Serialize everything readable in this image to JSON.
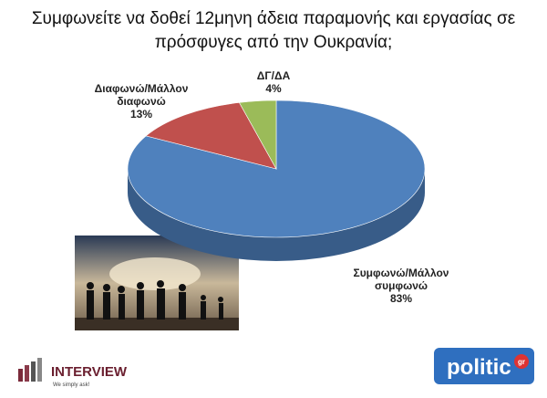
{
  "chart_data": {
    "type": "pie",
    "title": "Συμφωνείτε να δοθεί 12μηνη άδεια παραμονής και εργασίας σε πρόσφυγες από την Ουκρανία;",
    "categories": [
      "Συμφωνώ/Μάλλον συμφωνώ",
      "Διαφωνώ/Μάλλον διαφωνώ",
      "ΔΓ/ΔΑ"
    ],
    "values": [
      83,
      13,
      4
    ],
    "value_labels": [
      "83%",
      "13%",
      "4%"
    ],
    "colors": [
      "#4f81bd",
      "#c0504d",
      "#9bbb59"
    ]
  },
  "logos": {
    "left": "INTERVIEW",
    "left_tagline": "We simply ask!",
    "right": "politic",
    "right_badge": "gr"
  }
}
